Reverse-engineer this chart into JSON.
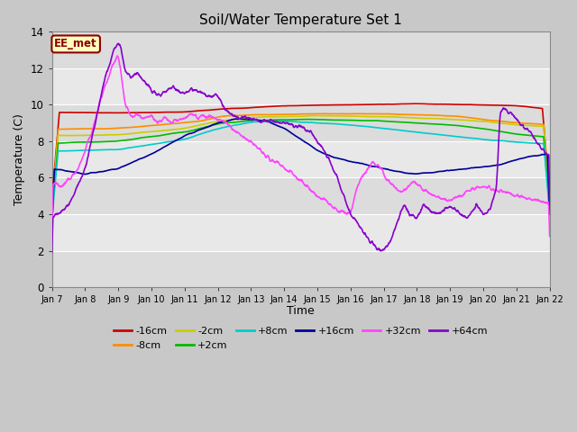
{
  "title": "Soil/Water Temperature Set 1",
  "xlabel": "Time",
  "ylabel": "Temperature (C)",
  "ylim": [
    0,
    14
  ],
  "xlim": [
    0,
    15
  ],
  "x_tick_labels": [
    "Jan 7",
    "Jan 8",
    "Jan 9",
    "Jan 10",
    "Jan 11",
    "Jan 12",
    "Jan 13",
    "Jan 14",
    "Jan 15",
    "Jan 16",
    "Jan 17",
    "Jan 18",
    "Jan 19",
    "Jan 20",
    "Jan 21",
    "Jan 22"
  ],
  "yticks": [
    0,
    2,
    4,
    6,
    8,
    10,
    12,
    14
  ],
  "annotation_text": "EE_met",
  "annotation_bg": "#FFFFC0",
  "annotation_border": "#8B0000",
  "series": {
    "-16cm": {
      "color": "#CC0000",
      "lw": 1.2
    },
    "-8cm": {
      "color": "#FF8C00",
      "lw": 1.2
    },
    "-2cm": {
      "color": "#CCCC00",
      "lw": 1.2
    },
    "+2cm": {
      "color": "#00BB00",
      "lw": 1.2
    },
    "+8cm": {
      "color": "#00CCCC",
      "lw": 1.2
    },
    "+16cm": {
      "color": "#000099",
      "lw": 1.2
    },
    "+32cm": {
      "color": "#FF44FF",
      "lw": 1.2
    },
    "+64cm": {
      "color": "#8800CC",
      "lw": 1.2
    }
  },
  "band_colors": [
    "#DCDCDC",
    "#E8E8E8"
  ],
  "grid_color": "#FFFFFF",
  "fig_bg": "#C8C8C8",
  "plot_bg": "#E0E0E0"
}
